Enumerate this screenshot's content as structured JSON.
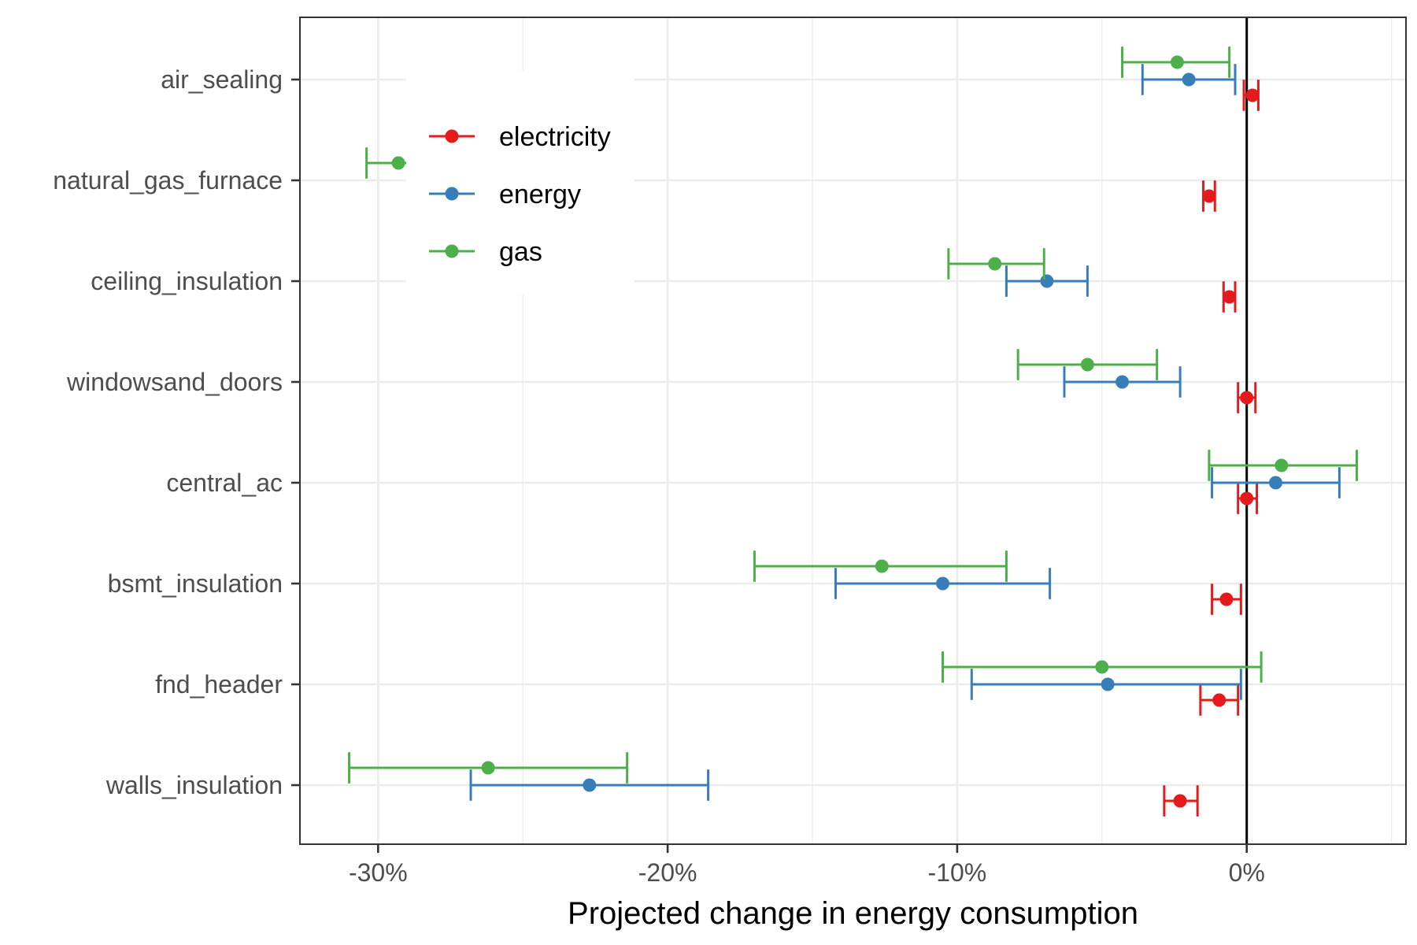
{
  "chart_data": {
    "type": "scatter",
    "subtype": "dot-and-whisker (point estimate with confidence interval)",
    "title": "",
    "xlabel": "Projected change in energy consumption",
    "ylabel": "",
    "categories": [
      "air_sealing",
      "natural_gas_furnace",
      "ceiling_insulation",
      "windowsand_doors",
      "central_ac",
      "bsmt_insulation",
      "fnd_header",
      "walls_insulation"
    ],
    "x_ticks": [
      -30,
      -20,
      -10,
      0
    ],
    "x_tick_labels": [
      "-30%",
      "-20%",
      "-10%",
      "0%"
    ],
    "xlim": [
      -32.7,
      5.5
    ],
    "x_units": "percent",
    "reference_line_x": 0,
    "grid": true,
    "legend_position": "top-left (inside plot)",
    "series": [
      {
        "name": "electricity",
        "color": "#e41a1c",
        "points": [
          {
            "category": "air_sealing",
            "estimate": 0.2,
            "low": -0.1,
            "high": 0.4
          },
          {
            "category": "natural_gas_furnace",
            "estimate": -1.3,
            "low": -1.5,
            "high": -1.1
          },
          {
            "category": "ceiling_insulation",
            "estimate": -0.6,
            "low": -0.8,
            "high": -0.4
          },
          {
            "category": "windowsand_doors",
            "estimate": 0.0,
            "low": -0.3,
            "high": 0.3
          },
          {
            "category": "central_ac",
            "estimate": 0.0,
            "low": -0.3,
            "high": 0.35
          },
          {
            "category": "bsmt_insulation",
            "estimate": -0.7,
            "low": -1.2,
            "high": -0.2
          },
          {
            "category": "fnd_header",
            "estimate": -0.95,
            "low": -1.6,
            "high": -0.3
          },
          {
            "category": "walls_insulation",
            "estimate": -2.3,
            "low": -2.85,
            "high": -1.7
          }
        ]
      },
      {
        "name": "energy",
        "color": "#377eb8",
        "points": [
          {
            "category": "air_sealing",
            "estimate": -2.0,
            "low": -3.6,
            "high": -0.4
          },
          {
            "category": "ceiling_insulation",
            "estimate": -6.9,
            "low": -8.3,
            "high": -5.5
          },
          {
            "category": "windowsand_doors",
            "estimate": -4.3,
            "low": -6.3,
            "high": -2.3
          },
          {
            "category": "central_ac",
            "estimate": 1.0,
            "low": -1.2,
            "high": 3.2
          },
          {
            "category": "bsmt_insulation",
            "estimate": -10.5,
            "low": -14.2,
            "high": -6.8
          },
          {
            "category": "fnd_header",
            "estimate": -4.8,
            "low": -9.5,
            "high": -0.2
          },
          {
            "category": "walls_insulation",
            "estimate": -22.7,
            "low": -26.8,
            "high": -18.6
          }
        ]
      },
      {
        "name": "gas",
        "color": "#4daf4a",
        "points": [
          {
            "category": "air_sealing",
            "estimate": -2.4,
            "low": -4.3,
            "high": -0.6
          },
          {
            "category": "natural_gas_furnace",
            "estimate": -29.3,
            "low": -30.4,
            "high": -28.2
          },
          {
            "category": "ceiling_insulation",
            "estimate": -8.7,
            "low": -10.3,
            "high": -7.0
          },
          {
            "category": "windowsand_doors",
            "estimate": -5.5,
            "low": -7.9,
            "high": -3.1
          },
          {
            "category": "central_ac",
            "estimate": 1.2,
            "low": -1.3,
            "high": 3.8
          },
          {
            "category": "bsmt_insulation",
            "estimate": -12.6,
            "low": -17.0,
            "high": -8.3
          },
          {
            "category": "fnd_header",
            "estimate": -5.0,
            "low": -10.5,
            "high": 0.5
          },
          {
            "category": "walls_insulation",
            "estimate": -26.2,
            "low": -31.0,
            "high": -21.4
          }
        ]
      }
    ]
  }
}
